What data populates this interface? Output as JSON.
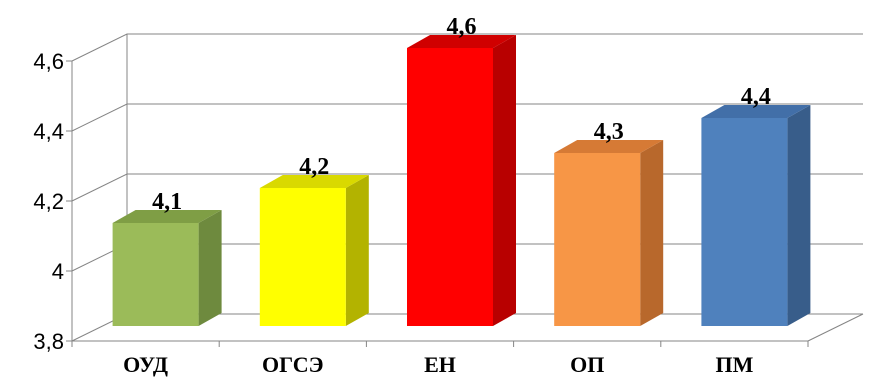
{
  "chart_data": {
    "type": "bar",
    "three_d": true,
    "categories": [
      "ОУД",
      "ОГСЭ",
      "ЕН",
      "ОП",
      "ПМ"
    ],
    "values": [
      4.1,
      4.2,
      4.6,
      4.3,
      4.4
    ],
    "data_labels": [
      "4,1",
      "4,2",
      "4,6",
      "4,3",
      "4,4"
    ],
    "y_ticks": [
      3.8,
      4.0,
      4.2,
      4.4,
      4.6
    ],
    "y_tick_labels": [
      "3,8",
      "4",
      "4,2",
      "4,4",
      "4,6"
    ],
    "ylim": [
      3.8,
      4.6
    ],
    "grid": true,
    "legend": "none",
    "colors": [
      {
        "front": "#9BBB59",
        "side": "#6E8A3E",
        "top": "#7F9E45"
      },
      {
        "front": "#FFFF00",
        "side": "#B3B300",
        "top": "#D9D900"
      },
      {
        "front": "#FF0000",
        "side": "#B80000",
        "top": "#D00000"
      },
      {
        "front": "#F79646",
        "side": "#B8682C",
        "top": "#D67A35"
      },
      {
        "front": "#4F81BD",
        "side": "#385D8A",
        "top": "#426FA8"
      }
    ]
  }
}
